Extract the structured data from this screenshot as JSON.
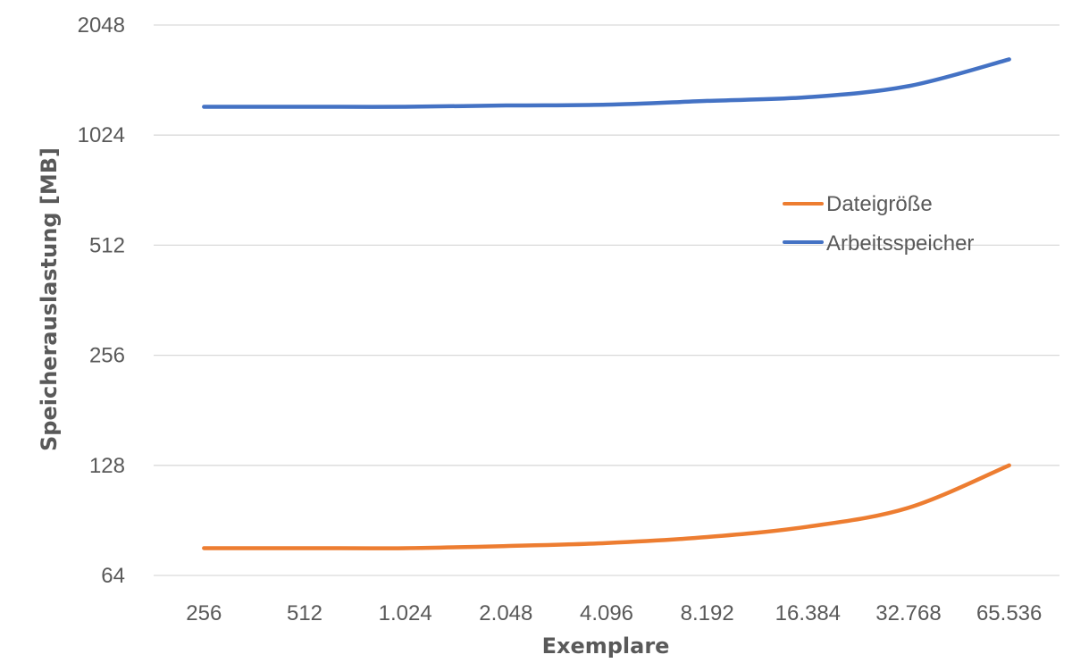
{
  "chart_data": {
    "type": "line",
    "title": "",
    "xlabel": "Exemplare",
    "ylabel": "Speicherauslastung [MB]",
    "y_scale": "log2",
    "ylim": [
      64,
      2048
    ],
    "y_ticks": [
      "64",
      "128",
      "256",
      "512",
      "1024",
      "2048"
    ],
    "y_tick_values": [
      64,
      128,
      256,
      512,
      1024,
      2048
    ],
    "categories": [
      "256",
      "512",
      "1.024",
      "2.048",
      "4.096",
      "8.192",
      "16.384",
      "32.768",
      "65.536"
    ],
    "grid": true,
    "legend_position": "right",
    "series": [
      {
        "name": "Dateigröße",
        "color": "#ED7D31",
        "values": [
          76,
          76,
          76,
          77,
          78.5,
          81.5,
          87,
          98,
          128
        ]
      },
      {
        "name": "Arbeitsspeicher",
        "color": "#4472C4",
        "values": [
          1224,
          1224,
          1224,
          1234,
          1240,
          1270,
          1300,
          1394,
          1650
        ]
      }
    ]
  }
}
